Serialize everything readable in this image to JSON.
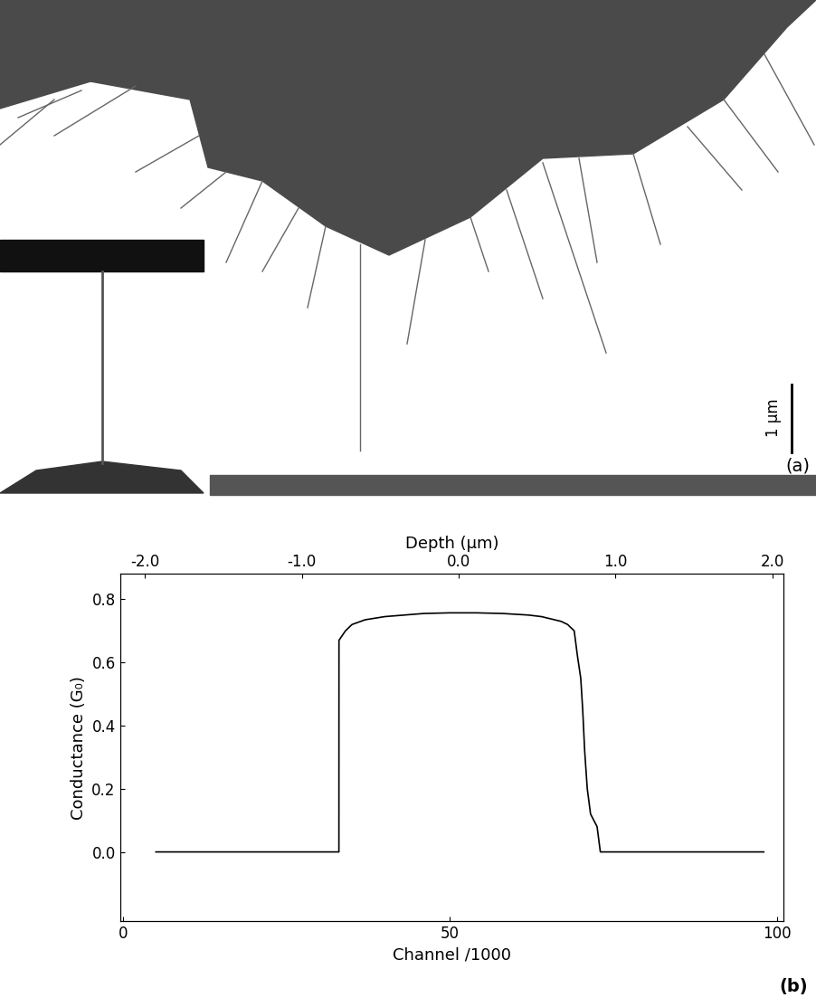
{
  "micrograph": {
    "label": "(a)",
    "scale_bar": "1 µm"
  },
  "chart_data": {
    "type": "line",
    "xlabel": "Channel /1000",
    "ylabel": "Conductance (G₀)",
    "x2label": "Depth (µm)",
    "annotations": [
      "(b)"
    ],
    "x": [
      5,
      10,
      15,
      20,
      25,
      30,
      33,
      33.01,
      34,
      35,
      37,
      40,
      43,
      46,
      50,
      54,
      58,
      62,
      64,
      66,
      67,
      68,
      69,
      69.5,
      70,
      70.3,
      70.6,
      71,
      71.5,
      72,
      72.5,
      73,
      75,
      80,
      85,
      90,
      95,
      98
    ],
    "values": [
      0,
      0,
      0,
      0,
      0,
      0,
      0,
      0.67,
      0.7,
      0.72,
      0.735,
      0.745,
      0.75,
      0.755,
      0.757,
      0.757,
      0.755,
      0.75,
      0.745,
      0.735,
      0.73,
      0.72,
      0.7,
      0.62,
      0.55,
      0.45,
      0.32,
      0.2,
      0.12,
      0.1,
      0.08,
      0,
      0,
      0,
      0,
      0,
      0,
      0
    ],
    "color": "#000000",
    "line_style": "solid",
    "xlim": [
      -0.5,
      101
    ],
    "xticks": [
      0,
      50,
      100
    ],
    "x2lim": [
      -2.16,
      2.07
    ],
    "x2ticks": [
      {
        "value": -2.0,
        "label": "-2.0"
      },
      {
        "value": -1.0,
        "label": "-1.0"
      },
      {
        "value": 0.0,
        "label": "0.0"
      },
      {
        "value": 1.0,
        "label": "1.0"
      },
      {
        "value": 2.0,
        "label": "2.0"
      }
    ],
    "ylim": [
      -0.22,
      0.88
    ],
    "yticks": [
      {
        "value": 0.0,
        "label": "0.0"
      },
      {
        "value": 0.2,
        "label": "0.2"
      },
      {
        "value": 0.4,
        "label": "0.4"
      },
      {
        "value": 0.6,
        "label": "0.6"
      },
      {
        "value": 0.8,
        "label": "0.8"
      }
    ],
    "grid": false
  }
}
